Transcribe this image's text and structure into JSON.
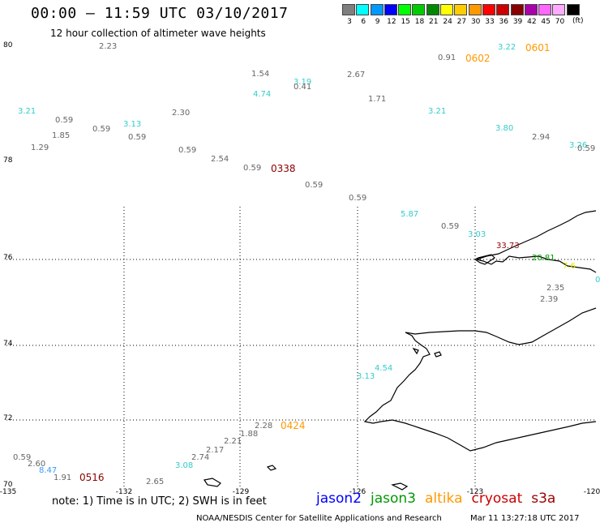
{
  "header": {
    "title": "00:00 – 11:59 UTC 03/10/2017",
    "subtitle": "12 hour collection of altimeter wave heights"
  },
  "colorbar": {
    "unit": "(ft)",
    "items": [
      {
        "label": "3",
        "color": "#7f7f7f"
      },
      {
        "label": "6",
        "color": "#00ffff"
      },
      {
        "label": "9",
        "color": "#0099ff"
      },
      {
        "label": "12",
        "color": "#0000ff"
      },
      {
        "label": "15",
        "color": "#00ff00"
      },
      {
        "label": "18",
        "color": "#00cc00"
      },
      {
        "label": "21",
        "color": "#008800"
      },
      {
        "label": "24",
        "color": "#ffff00"
      },
      {
        "label": "27",
        "color": "#ffcc00"
      },
      {
        "label": "30",
        "color": "#ff9900"
      },
      {
        "label": "33",
        "color": "#ff0000"
      },
      {
        "label": "36",
        "color": "#cc0000"
      },
      {
        "label": "39",
        "color": "#880000"
      },
      {
        "label": "42",
        "color": "#aa00aa"
      },
      {
        "label": "45",
        "color": "#ff66ff"
      },
      {
        "label": "70",
        "color": "#ffaaff"
      },
      {
        "label": "",
        "color": "#000000"
      }
    ]
  },
  "axes": {
    "lat_labels": [
      "80",
      "78",
      "76",
      "74",
      "72",
      "70"
    ],
    "lon_labels": [
      "-135",
      "-132",
      "-129",
      "-126",
      "-123",
      "-120"
    ]
  },
  "wave_heights": [
    {
      "v": "2.23",
      "c": "#666666"
    },
    {
      "v": "1.54",
      "c": "#666666"
    },
    {
      "v": "3.19",
      "c": "#33cccc"
    },
    {
      "v": "0.41",
      "c": "#666666"
    },
    {
      "v": "2.67",
      "c": "#666666"
    },
    {
      "v": "0.91",
      "c": "#666666"
    },
    {
      "v": "3.22",
      "c": "#33cccc"
    },
    {
      "v": "4.74",
      "c": "#33cccc"
    },
    {
      "v": "1.71",
      "c": "#666666"
    },
    {
      "v": "3.21",
      "c": "#33cccc"
    },
    {
      "v": "3.21",
      "c": "#33cccc"
    },
    {
      "v": "0.59",
      "c": "#666666"
    },
    {
      "v": "2.30",
      "c": "#666666"
    },
    {
      "v": "1.85",
      "c": "#666666"
    },
    {
      "v": "0.59",
      "c": "#666666"
    },
    {
      "v": "3.13",
      "c": "#33cccc"
    },
    {
      "v": "0.59",
      "c": "#666666"
    },
    {
      "v": "3.80",
      "c": "#33cccc"
    },
    {
      "v": "2.94",
      "c": "#666666"
    },
    {
      "v": "1.29",
      "c": "#666666"
    },
    {
      "v": "0.59",
      "c": "#666666"
    },
    {
      "v": "2.54",
      "c": "#666666"
    },
    {
      "v": "3.26",
      "c": "#33cccc"
    },
    {
      "v": "0.59",
      "c": "#666666"
    },
    {
      "v": "0.59",
      "c": "#666666"
    },
    {
      "v": "0.59",
      "c": "#666666"
    },
    {
      "v": "0.59",
      "c": "#666666"
    },
    {
      "v": "5.87",
      "c": "#33cccc"
    },
    {
      "v": "0.59",
      "c": "#666666"
    },
    {
      "v": "3.03",
      "c": "#33cccc"
    },
    {
      "v": "33.73",
      "c": "#990000"
    },
    {
      "v": "20.81",
      "c": "#009900"
    },
    {
      "v": "7.6",
      "c": "#e6e600"
    },
    {
      "v": "2.35",
      "c": "#666666"
    },
    {
      "v": "0",
      "c": "#33cccc"
    },
    {
      "v": "2.39",
      "c": "#666666"
    },
    {
      "v": "4.54",
      "c": "#33cccc"
    },
    {
      "v": "3.13",
      "c": "#33cccc"
    },
    {
      "v": "2.28",
      "c": "#666666"
    },
    {
      "v": "1.88",
      "c": "#666666"
    },
    {
      "v": "2.21",
      "c": "#666666"
    },
    {
      "v": "2.17",
      "c": "#666666"
    },
    {
      "v": "2.74",
      "c": "#666666"
    },
    {
      "v": "3.08",
      "c": "#33cccc"
    },
    {
      "v": "0.59",
      "c": "#666666"
    },
    {
      "v": "2.60",
      "c": "#666666"
    },
    {
      "v": "8.47",
      "c": "#3399ff"
    },
    {
      "v": "1.91",
      "c": "#666666"
    },
    {
      "v": "2.65",
      "c": "#666666"
    }
  ],
  "pass_times": [
    {
      "t": "0601",
      "c": "#ff9900"
    },
    {
      "t": "0602",
      "c": "#ff9900"
    },
    {
      "t": "0338",
      "c": "#880000"
    },
    {
      "t": "0424",
      "c": "#ff9900"
    },
    {
      "t": "0516",
      "c": "#880000"
    }
  ],
  "footer": {
    "note": "note: 1) Time is in UTC; 2) SWH is in feet",
    "legend": [
      {
        "name": "jason2",
        "color": "#0000ff"
      },
      {
        "name": "jason3",
        "color": "#009900"
      },
      {
        "name": "altika",
        "color": "#ff9900"
      },
      {
        "name": "cryosat",
        "color": "#cc0000"
      },
      {
        "name": "s3a",
        "color": "#990000"
      }
    ],
    "credit": "NOAA/NESDIS Center for Satellite Applications and Research",
    "timestamp": "Mar 11 13:27:18 UTC 2017"
  }
}
